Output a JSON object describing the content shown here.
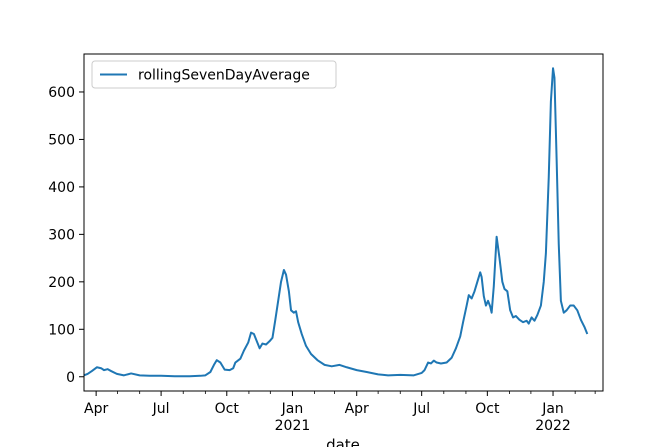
{
  "chart_data": {
    "type": "line",
    "title": "",
    "xlabel": "date",
    "ylabel": "",
    "ylim": [
      -30,
      680
    ],
    "xlim": [
      "2020-03-15",
      "2022-03-12"
    ],
    "grid": false,
    "legend": {
      "placement": "top-left"
    },
    "y_ticks": [
      0,
      100,
      200,
      300,
      400,
      500,
      600
    ],
    "x_ticks": [
      {
        "date": "2020-04-01",
        "label": "Apr",
        "sublabel": ""
      },
      {
        "date": "2020-07-01",
        "label": "Jul",
        "sublabel": ""
      },
      {
        "date": "2020-10-01",
        "label": "Oct",
        "sublabel": ""
      },
      {
        "date": "2021-01-01",
        "label": "Jan",
        "sublabel": "2021"
      },
      {
        "date": "2021-04-01",
        "label": "Apr",
        "sublabel": ""
      },
      {
        "date": "2021-07-01",
        "label": "Jul",
        "sublabel": ""
      },
      {
        "date": "2021-10-01",
        "label": "Oct",
        "sublabel": ""
      },
      {
        "date": "2022-01-01",
        "label": "Jan",
        "sublabel": "2022"
      }
    ],
    "series": [
      {
        "name": "rollingSevenDayAverage",
        "color": "#1f77b4",
        "points": [
          [
            "2020-03-15",
            3
          ],
          [
            "2020-03-20",
            6
          ],
          [
            "2020-03-26",
            12
          ],
          [
            "2020-04-02",
            20
          ],
          [
            "2020-04-08",
            18
          ],
          [
            "2020-04-12",
            14
          ],
          [
            "2020-04-17",
            16
          ],
          [
            "2020-04-22",
            12
          ],
          [
            "2020-04-30",
            6
          ],
          [
            "2020-05-10",
            3
          ],
          [
            "2020-05-20",
            7
          ],
          [
            "2020-06-01",
            3
          ],
          [
            "2020-06-15",
            2
          ],
          [
            "2020-07-01",
            2
          ],
          [
            "2020-07-20",
            1
          ],
          [
            "2020-08-10",
            1
          ],
          [
            "2020-08-25",
            2
          ],
          [
            "2020-09-01",
            3
          ],
          [
            "2020-09-08",
            10
          ],
          [
            "2020-09-13",
            25
          ],
          [
            "2020-09-17",
            35
          ],
          [
            "2020-09-22",
            30
          ],
          [
            "2020-09-28",
            15
          ],
          [
            "2020-10-05",
            14
          ],
          [
            "2020-10-10",
            18
          ],
          [
            "2020-10-13",
            30
          ],
          [
            "2020-10-20",
            38
          ],
          [
            "2020-10-25",
            55
          ],
          [
            "2020-10-31",
            72
          ],
          [
            "2020-11-04",
            93
          ],
          [
            "2020-11-08",
            90
          ],
          [
            "2020-11-12",
            75
          ],
          [
            "2020-11-16",
            60
          ],
          [
            "2020-11-20",
            70
          ],
          [
            "2020-11-25",
            68
          ],
          [
            "2020-11-30",
            75
          ],
          [
            "2020-12-04",
            82
          ],
          [
            "2020-12-08",
            120
          ],
          [
            "2020-12-12",
            160
          ],
          [
            "2020-12-16",
            200
          ],
          [
            "2020-12-20",
            225
          ],
          [
            "2020-12-23",
            215
          ],
          [
            "2020-12-27",
            180
          ],
          [
            "2020-12-30",
            140
          ],
          [
            "2021-01-03",
            135
          ],
          [
            "2021-01-06",
            138
          ],
          [
            "2021-01-09",
            115
          ],
          [
            "2021-01-14",
            90
          ],
          [
            "2021-01-20",
            65
          ],
          [
            "2021-01-27",
            48
          ],
          [
            "2021-02-05",
            35
          ],
          [
            "2021-02-15",
            25
          ],
          [
            "2021-02-25",
            22
          ],
          [
            "2021-03-08",
            25
          ],
          [
            "2021-03-18",
            20
          ],
          [
            "2021-04-01",
            14
          ],
          [
            "2021-04-15",
            10
          ],
          [
            "2021-05-01",
            5
          ],
          [
            "2021-05-15",
            3
          ],
          [
            "2021-06-01",
            4
          ],
          [
            "2021-06-20",
            3
          ],
          [
            "2021-07-01",
            8
          ],
          [
            "2021-07-05",
            14
          ],
          [
            "2021-07-10",
            30
          ],
          [
            "2021-07-14",
            28
          ],
          [
            "2021-07-18",
            34
          ],
          [
            "2021-07-22",
            30
          ],
          [
            "2021-07-28",
            28
          ],
          [
            "2021-08-05",
            30
          ],
          [
            "2021-08-12",
            40
          ],
          [
            "2021-08-18",
            60
          ],
          [
            "2021-08-24",
            85
          ],
          [
            "2021-08-28",
            115
          ],
          [
            "2021-09-02",
            150
          ],
          [
            "2021-09-05",
            172
          ],
          [
            "2021-09-09",
            165
          ],
          [
            "2021-09-13",
            180
          ],
          [
            "2021-09-17",
            200
          ],
          [
            "2021-09-21",
            220
          ],
          [
            "2021-09-23",
            210
          ],
          [
            "2021-09-26",
            170
          ],
          [
            "2021-09-29",
            150
          ],
          [
            "2021-10-02",
            160
          ],
          [
            "2021-10-05",
            148
          ],
          [
            "2021-10-07",
            135
          ],
          [
            "2021-10-10",
            190
          ],
          [
            "2021-10-14",
            295
          ],
          [
            "2021-10-18",
            250
          ],
          [
            "2021-10-22",
            200
          ],
          [
            "2021-10-25",
            185
          ],
          [
            "2021-10-29",
            180
          ],
          [
            "2021-11-02",
            140
          ],
          [
            "2021-11-06",
            125
          ],
          [
            "2021-11-10",
            128
          ],
          [
            "2021-11-15",
            120
          ],
          [
            "2021-11-20",
            115
          ],
          [
            "2021-11-25",
            118
          ],
          [
            "2021-11-28",
            112
          ],
          [
            "2021-12-02",
            125
          ],
          [
            "2021-12-06",
            118
          ],
          [
            "2021-12-10",
            130
          ],
          [
            "2021-12-15",
            150
          ],
          [
            "2021-12-19",
            200
          ],
          [
            "2021-12-22",
            260
          ],
          [
            "2021-12-26",
            420
          ],
          [
            "2021-12-29",
            580
          ],
          [
            "2022-01-01",
            650
          ],
          [
            "2022-01-03",
            630
          ],
          [
            "2022-01-06",
            460
          ],
          [
            "2022-01-09",
            280
          ],
          [
            "2022-01-12",
            160
          ],
          [
            "2022-01-16",
            135
          ],
          [
            "2022-01-20",
            140
          ],
          [
            "2022-01-25",
            150
          ],
          [
            "2022-01-30",
            150
          ],
          [
            "2022-02-04",
            140
          ],
          [
            "2022-02-09",
            120
          ],
          [
            "2022-02-14",
            105
          ],
          [
            "2022-02-18",
            90
          ]
        ]
      }
    ]
  }
}
